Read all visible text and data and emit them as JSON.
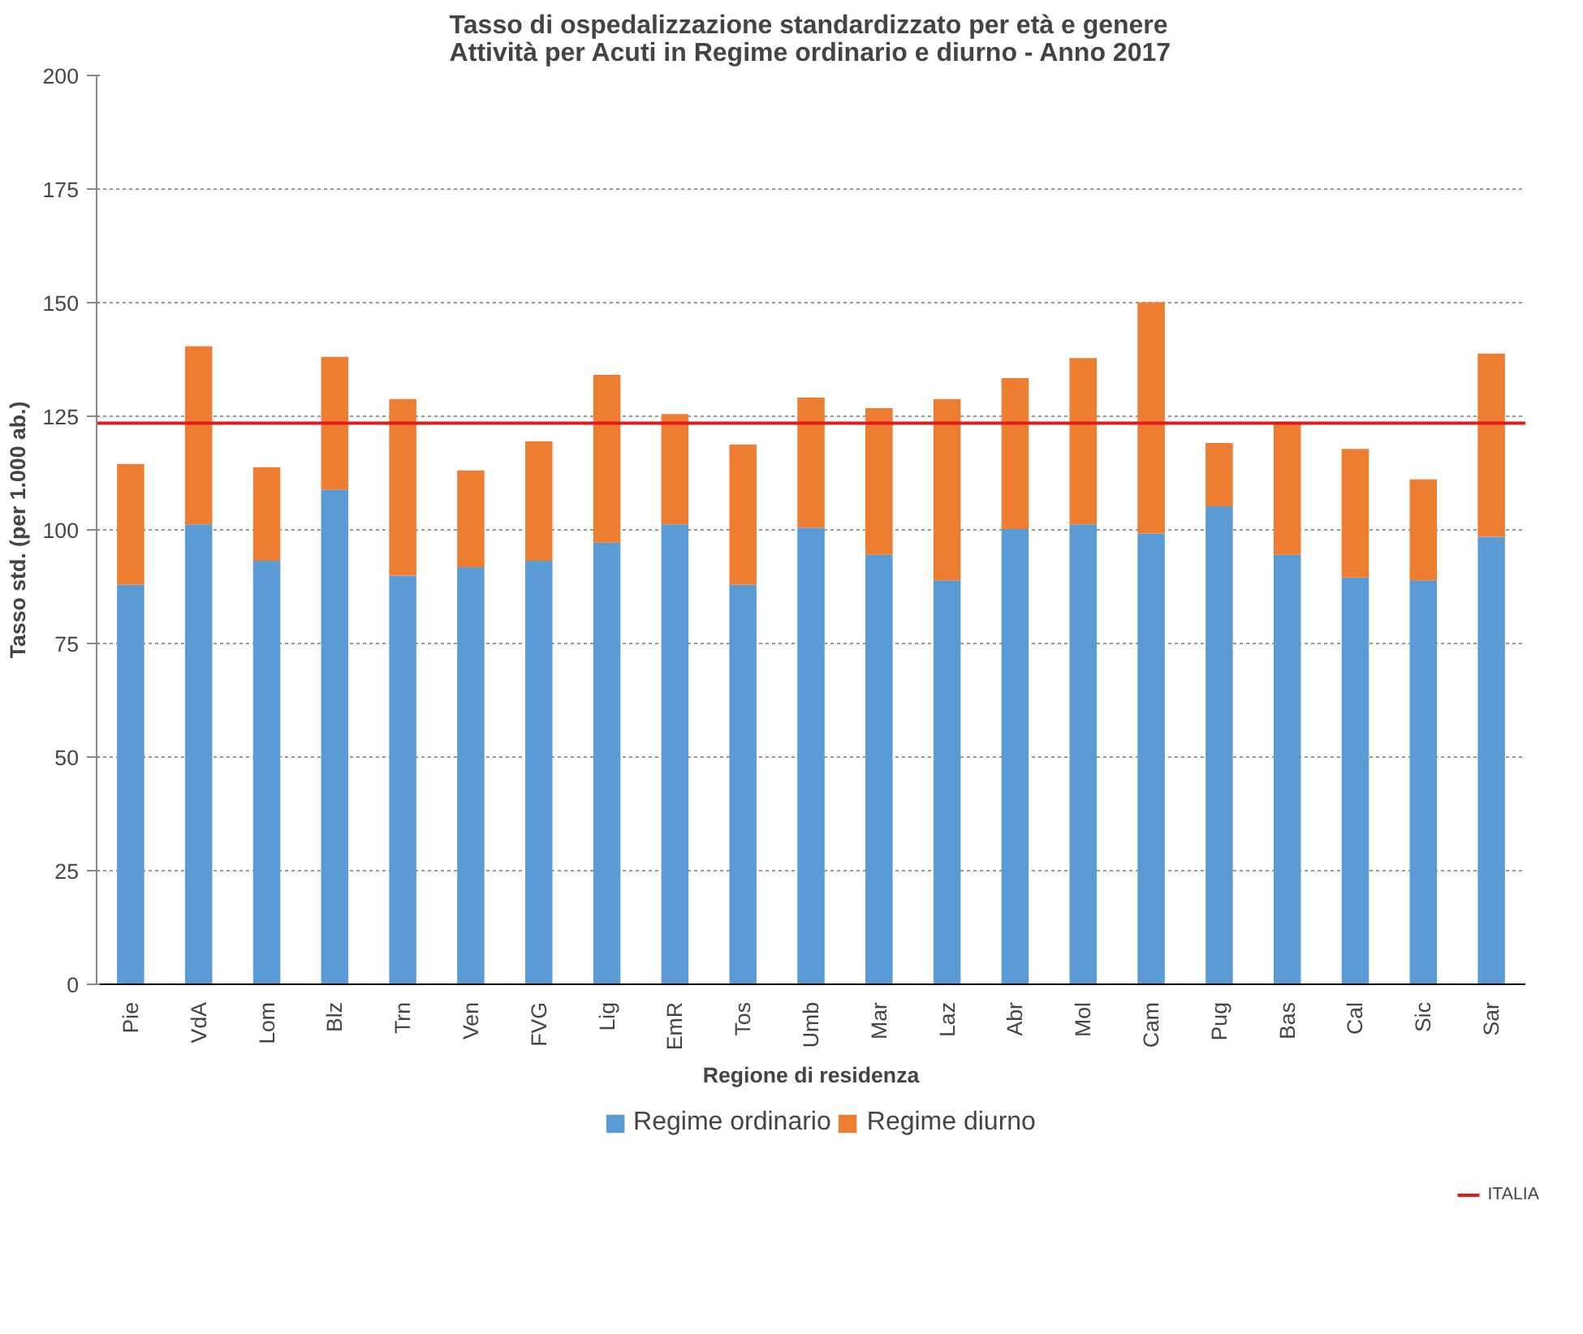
{
  "chart_data": {
    "type": "bar",
    "stacked": true,
    "title": "Tasso di ospedalizzazione standardizzato per età e genere\nAttività per Acuti in Regime ordinario e diurno - Anno 2017",
    "xlabel": "Regione di residenza",
    "ylabel": "Tasso std. (per 1.000 ab.)",
    "categories": [
      "Pie",
      "VdA",
      "Lom",
      "Blz",
      "Trn",
      "Ven",
      "FVG",
      "Lig",
      "EmR",
      "Tos",
      "Umb",
      "Mar",
      "Laz",
      "Abr",
      "Mol",
      "Cam",
      "Pug",
      "Bas",
      "Cal",
      "Sic",
      "Sar"
    ],
    "series": [
      {
        "name": "Regime ordinario",
        "color": "#5b9bd5",
        "values": [
          87.9,
          101.2,
          93.2,
          108.8,
          89.9,
          91.8,
          93.2,
          97.2,
          101.2,
          87.9,
          100.5,
          94.5,
          88.9,
          100.2,
          101.2,
          99.2,
          105.2,
          94.5,
          89.5,
          88.9,
          98.5
        ]
      },
      {
        "name": "Regime diurno",
        "color": "#ed7d31",
        "values": [
          26.6,
          39.2,
          20.6,
          29.3,
          38.9,
          21.3,
          26.3,
          36.9,
          24.3,
          30.9,
          28.6,
          32.3,
          39.9,
          33.2,
          36.6,
          50.9,
          13.9,
          29.0,
          28.3,
          22.2,
          40.3
        ]
      }
    ],
    "ylim": [
      0,
      200
    ],
    "yticks": [
      0,
      25,
      50,
      75,
      100,
      125,
      150,
      175,
      200
    ],
    "grid": "y",
    "legend": "bottom",
    "ref_lines": [
      {
        "axis": "y",
        "value": 123.5,
        "label": "ITALIA",
        "color": "#e31a1c"
      }
    ]
  }
}
